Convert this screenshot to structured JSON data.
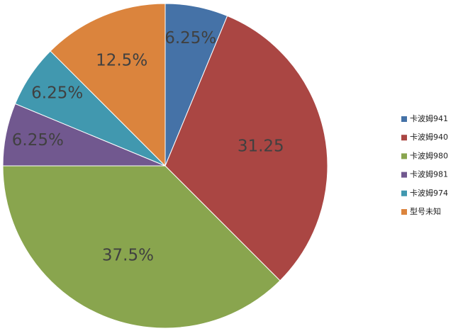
{
  "chart_data": {
    "type": "pie",
    "categories": [
      "卡波姆941",
      "卡波姆940",
      "卡波姆980",
      "卡波姆981",
      "卡波姆974",
      "型号未知"
    ],
    "values": [
      6.25,
      31.25,
      37.5,
      6.25,
      6.25,
      12.5
    ],
    "value_labels": [
      "6.25%",
      "31.25",
      "37.5%",
      "6.25%",
      "6.25%",
      "12.5%"
    ],
    "colors": [
      "#4572a7",
      "#aa4643",
      "#89a54e",
      "#71588f",
      "#4198af",
      "#db843d"
    ],
    "legend": "right"
  }
}
